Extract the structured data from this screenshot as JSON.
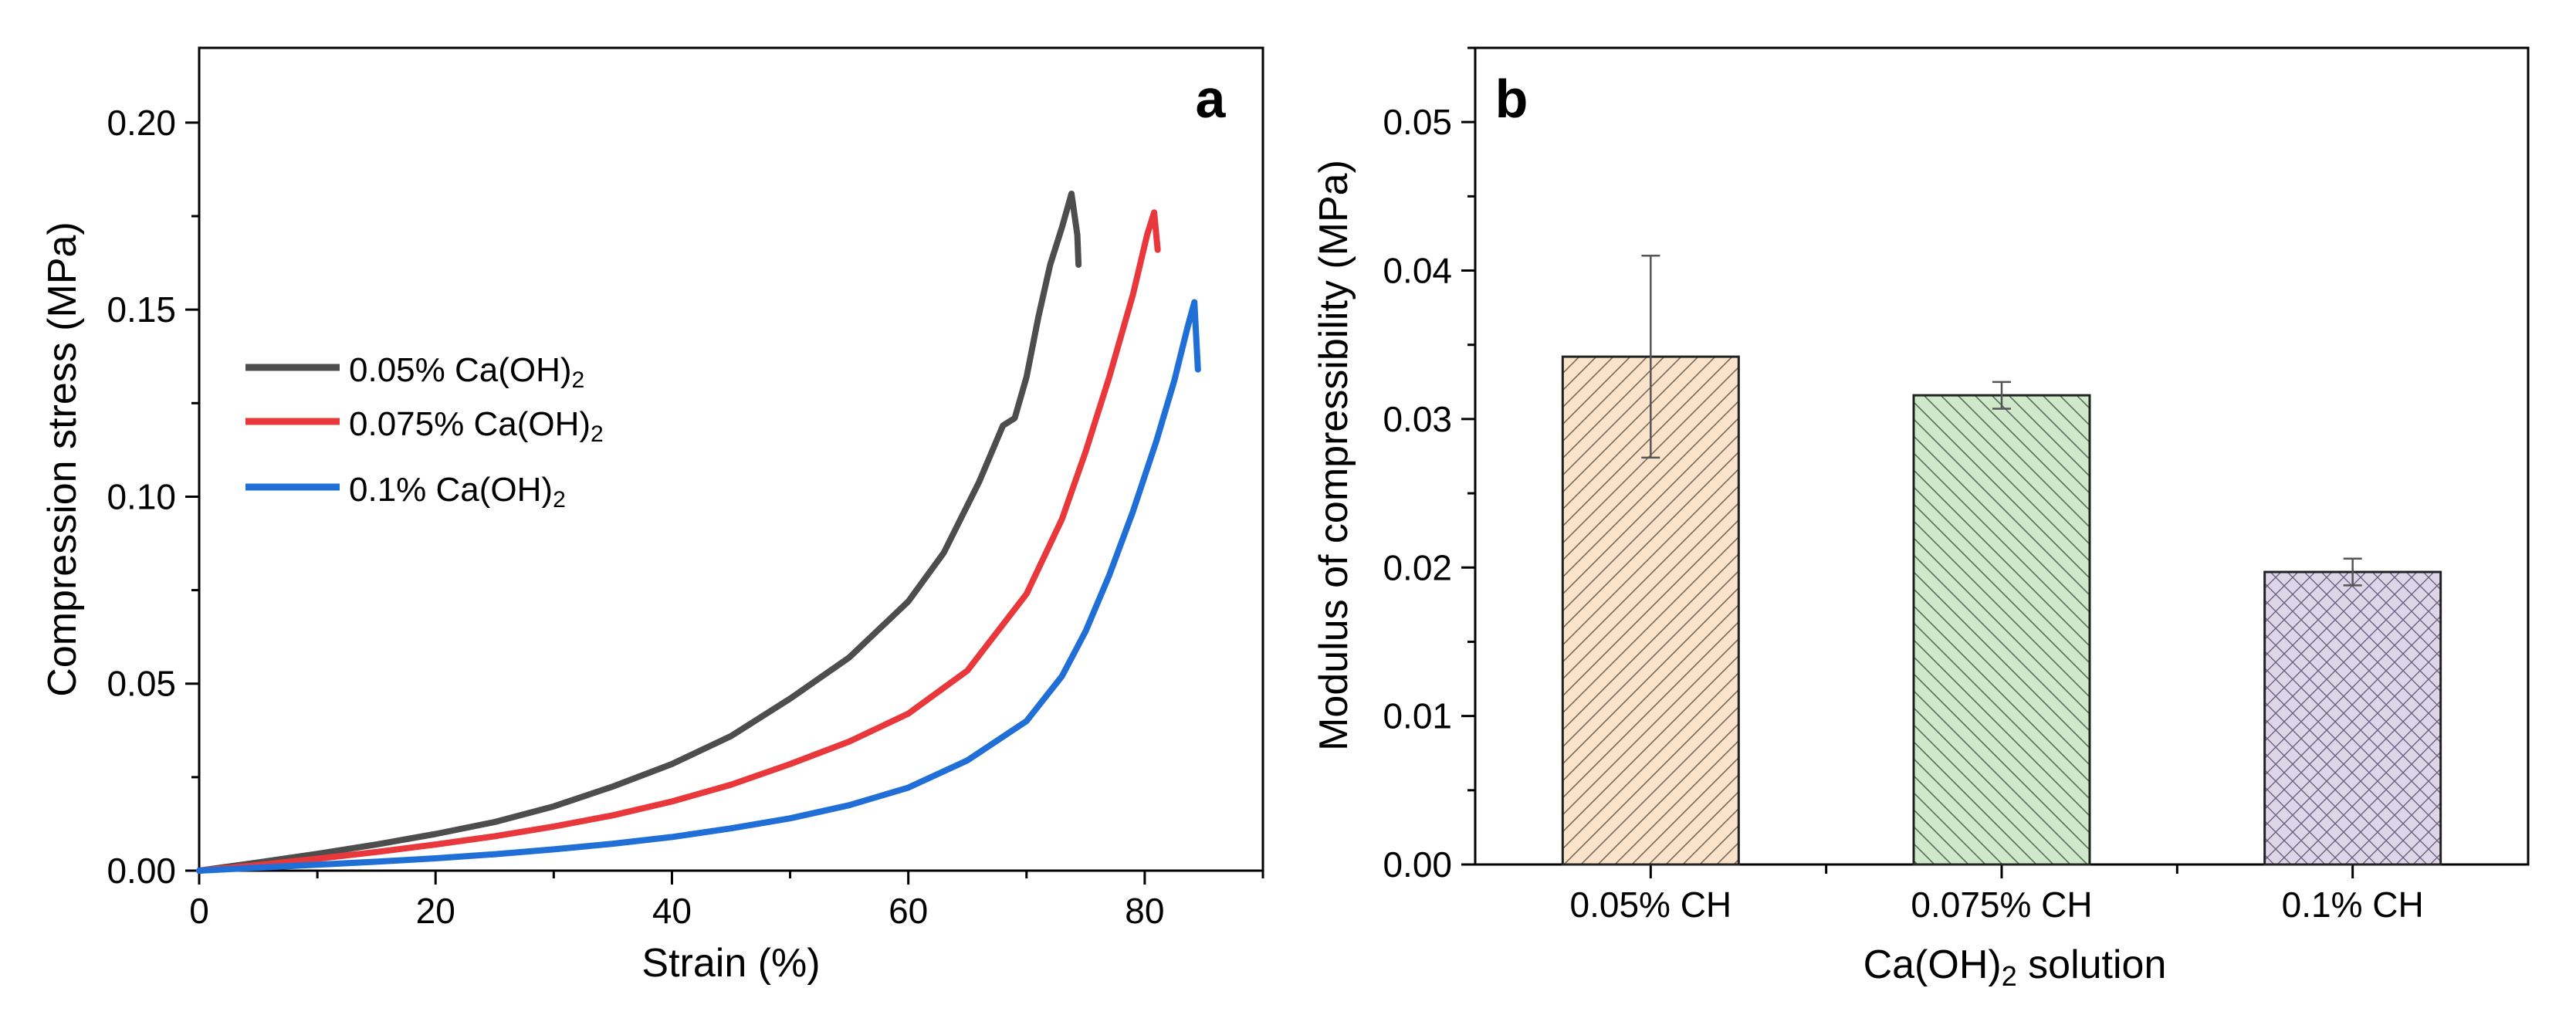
{
  "chart_data": [
    {
      "type": "line",
      "panel_label": "a",
      "xlabel": "Strain (%)",
      "ylabel": "Compression stress (MPa)",
      "xlim": [
        0,
        90
      ],
      "ylim": [
        0,
        0.22
      ],
      "xticks": [
        "0",
        "20",
        "40",
        "60",
        "80"
      ],
      "yticks": [
        "0.00",
        "0.05",
        "0.10",
        "0.15",
        "0.20"
      ],
      "xtick_values": [
        0,
        20,
        40,
        60,
        80
      ],
      "ytick_values": [
        0,
        0.05,
        0.1,
        0.15,
        0.2
      ],
      "legend_position": "left-middle",
      "series": [
        {
          "name": "0.05% Ca(OH)2",
          "legend_main": "0.05% Ca(OH)",
          "legend_sub": "2",
          "color": "#4d4d4d",
          "x": [
            0,
            5,
            10,
            15,
            20,
            25,
            30,
            35,
            40,
            45,
            50,
            55,
            60,
            63,
            66,
            68,
            69,
            70,
            71,
            72,
            73,
            73.8,
            74.3,
            74.4
          ],
          "y": [
            0,
            0.0022,
            0.0045,
            0.007,
            0.0098,
            0.013,
            0.0172,
            0.0225,
            0.0285,
            0.036,
            0.046,
            0.057,
            0.072,
            0.085,
            0.104,
            0.119,
            0.121,
            0.132,
            0.148,
            0.162,
            0.172,
            0.181,
            0.17,
            0.162
          ]
        },
        {
          "name": "0.075% Ca(OH)2",
          "legend_main": "0.075% Ca(OH)",
          "legend_sub": "2",
          "color": "#e8383b",
          "x": [
            0,
            5,
            10,
            15,
            20,
            25,
            30,
            35,
            40,
            45,
            50,
            55,
            60,
            65,
            70,
            73,
            75,
            77,
            79,
            80.2,
            80.8,
            81.1
          ],
          "y": [
            0,
            0.0015,
            0.0032,
            0.005,
            0.007,
            0.0092,
            0.0118,
            0.0148,
            0.0185,
            0.023,
            0.0285,
            0.0345,
            0.042,
            0.0535,
            0.074,
            0.094,
            0.112,
            0.132,
            0.154,
            0.17,
            0.176,
            0.166
          ]
        },
        {
          "name": "0.1% Ca(OH)2",
          "legend_main": "0.1% Ca(OH)",
          "legend_sub": "2",
          "color": "#1f6fd6",
          "x": [
            0,
            5,
            10,
            15,
            20,
            25,
            30,
            35,
            40,
            45,
            50,
            55,
            60,
            65,
            70,
            73,
            75,
            77,
            79,
            81,
            82.5,
            83.6,
            84.2,
            84.5
          ],
          "y": [
            0,
            0.0008,
            0.0016,
            0.0024,
            0.0033,
            0.0044,
            0.0057,
            0.0072,
            0.009,
            0.0113,
            0.014,
            0.0175,
            0.0222,
            0.0295,
            0.04,
            0.052,
            0.064,
            0.079,
            0.096,
            0.115,
            0.131,
            0.145,
            0.152,
            0.134
          ]
        }
      ]
    },
    {
      "type": "bar",
      "panel_label": "b",
      "xlabel_main": "Ca(OH)",
      "xlabel_sub": "2",
      "xlabel_rest": " solution",
      "ylabel": "Modulus of compressibility (MPa)",
      "ylim": [
        0,
        0.055
      ],
      "yticks": [
        "0.00",
        "0.01",
        "0.02",
        "0.03",
        "0.04",
        "0.05"
      ],
      "ytick_values": [
        0,
        0.01,
        0.02,
        0.03,
        0.04,
        0.05
      ],
      "categories": [
        "0.05% CH",
        "0.075% CH",
        "0.1% CH"
      ],
      "values": [
        0.0342,
        0.0316,
        0.0197
      ],
      "errors": [
        0.0068,
        0.0009,
        0.0009
      ],
      "fills": [
        "#fbe3cb",
        "#cfe8c9",
        "#ddd6e9"
      ],
      "hatches": [
        "diagonal",
        "back-diagonal",
        "cross"
      ]
    }
  ]
}
